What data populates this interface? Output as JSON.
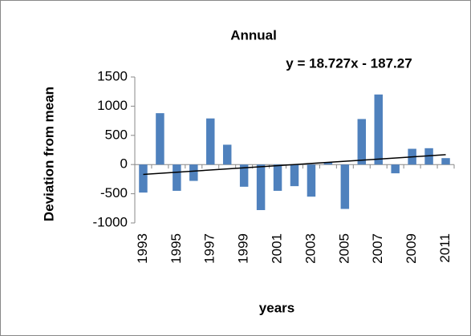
{
  "chart_data": {
    "type": "bar",
    "title": "Annual",
    "annotation": "y = 18.727x - 187.27",
    "trendline": {
      "slope": 18.727,
      "intercept": -187.27
    },
    "x_label": "years",
    "y_label": "Deviation from mean",
    "categories": [
      "1993",
      null,
      "1995",
      null,
      "1997",
      null,
      "1999",
      null,
      "2001",
      null,
      "2003",
      null,
      "2005",
      null,
      "2007",
      null,
      "2009",
      null,
      "2011"
    ],
    "values": [
      -480,
      880,
      -450,
      -280,
      790,
      340,
      -380,
      -780,
      -450,
      -370,
      -550,
      40,
      -760,
      780,
      1200,
      -150,
      270,
      280,
      110
    ],
    "color": "#4f81bd",
    "ylim": [
      -1000,
      1500
    ],
    "yticks": [
      -1000,
      -500,
      0,
      500,
      1000,
      1500
    ],
    "grid": false
  }
}
